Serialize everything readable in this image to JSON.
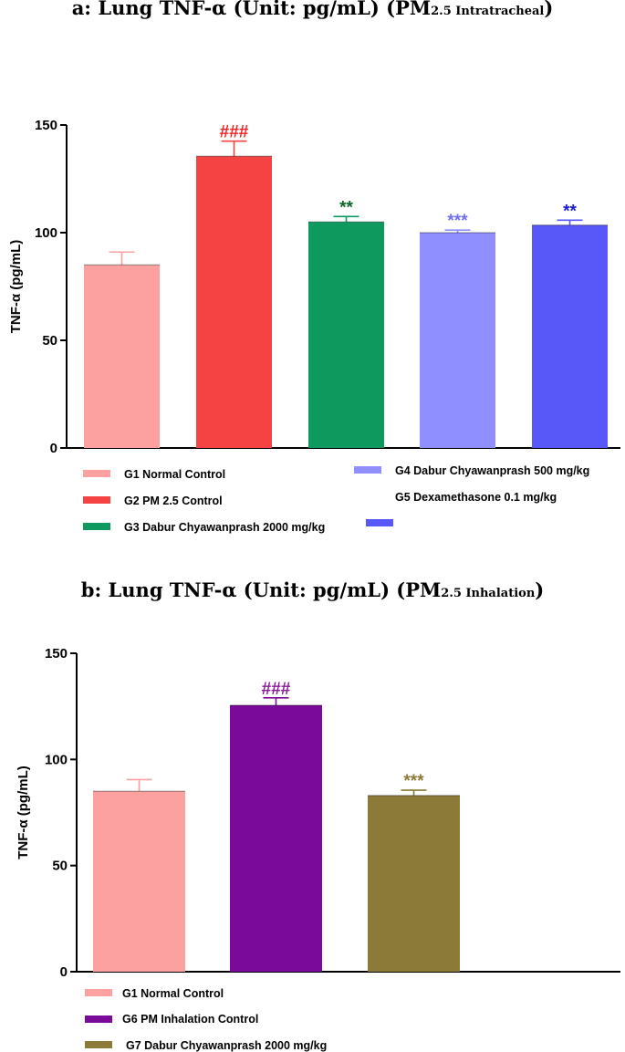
{
  "chart_data": [
    {
      "type": "bar",
      "title": {
        "prefix": "a: Lung TNF-α (Unit: pg/mL) (PM",
        "subscript": "2.5 Intratracheal",
        "suffix": ")"
      },
      "ylabel": "TNF-α (pg/mL)",
      "ylim": [
        0,
        150
      ],
      "yticks": [
        "0",
        "50",
        "100",
        "150"
      ],
      "categories": [
        "G1 Normal Control",
        "G2 PM 2.5 Control",
        "G3 Dabur Chyawanprash 2000 mg/kg",
        "G4 Dabur Chyawanprash 500 mg/kg",
        "G5 Dexamethasone 0.1 mg/kg"
      ],
      "values": [
        85,
        135.5,
        105,
        100,
        103.5
      ],
      "errors": [
        6,
        7,
        2.5,
        1.2,
        2.3
      ],
      "colors": [
        "#fca0a0",
        "#f54242",
        "#0e9a5e",
        "#8f8fff",
        "#5858f8"
      ],
      "annotations": [
        "",
        "###",
        "**",
        "***",
        "**"
      ],
      "annotation_colors": [
        "",
        "#f02222",
        "#0a6a2a",
        "#7070f0",
        "#1a1ad0"
      ],
      "legend": {
        "left": [
          "G1 Normal Control",
          "G2 PM 2.5 Control",
          "G3 Dabur Chyawanprash 2000 mg/kg"
        ],
        "right": [
          "G4 Dabur Chyawanprash 500 mg/kg",
          "G5 Dexamethasone 0.1 mg/kg"
        ]
      }
    },
    {
      "type": "bar",
      "title": {
        "prefix": "b: Lung TNF-α (Unit: pg/mL) (PM",
        "subscript": "2.5 Inhalation",
        "suffix": ")"
      },
      "ylabel": "TNF-α (pg/mL)",
      "ylim": [
        0,
        150
      ],
      "yticks": [
        "0",
        "50",
        "100",
        "150"
      ],
      "categories": [
        "G1 Normal Control",
        "G6 PM Inhalation Control",
        "G7 Dabur Chyawanprash 2000 mg/kg"
      ],
      "values": [
        85,
        125.5,
        83
      ],
      "errors": [
        5.5,
        3.5,
        2.5
      ],
      "colors": [
        "#fca0a0",
        "#7a0a9a",
        "#8c7a38"
      ],
      "annotations": [
        "",
        "###",
        "***"
      ],
      "annotation_colors": [
        "",
        "#8a1a9a",
        "#8c7a38"
      ],
      "legend": {
        "left": [
          "G1 Normal Control",
          "G6 PM Inhalation Control",
          "G7 Dabur Chyawanprash 2000 mg/kg"
        ]
      }
    }
  ]
}
